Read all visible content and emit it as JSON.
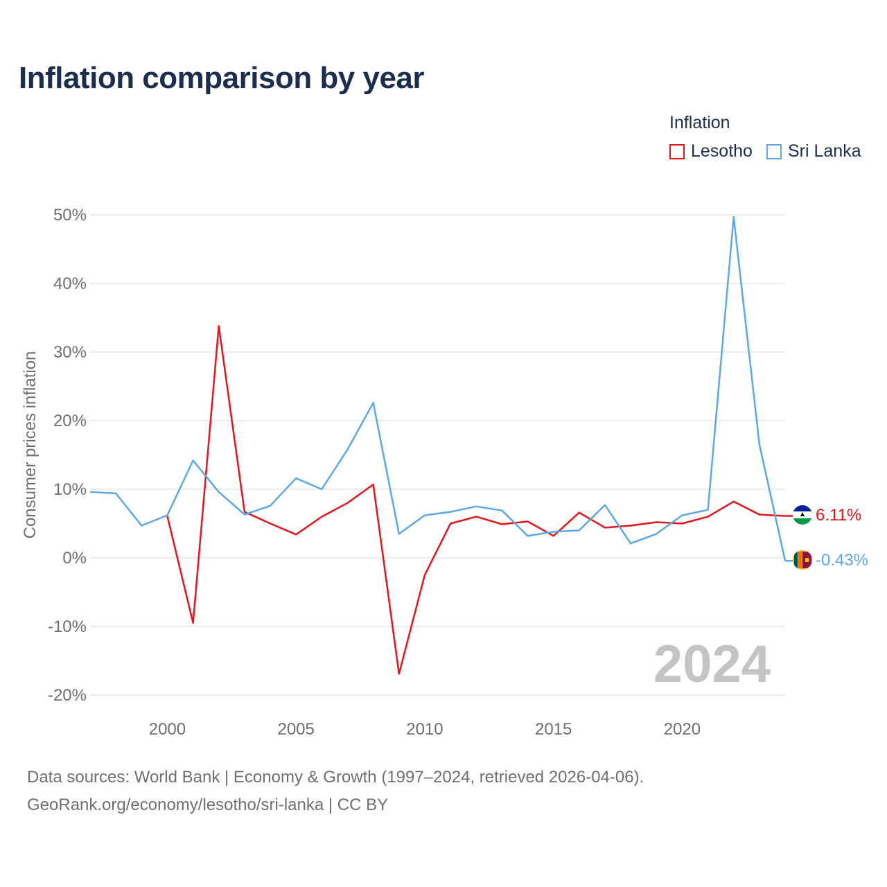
{
  "title": "Inflation comparison by year",
  "legend": {
    "title": "Inflation",
    "items": [
      {
        "label": "Lesotho",
        "color": "#e8141b"
      },
      {
        "label": "Sri Lanka",
        "color": "#5ca8e6"
      }
    ]
  },
  "footer": {
    "line1": "Data sources: World Bank | Economy & Growth (1997–2024, retrieved 2026-04-06).",
    "line2": "GeoRank.org/economy/lesotho/sri-lanka | CC BY"
  },
  "chart_data": {
    "type": "line",
    "ylabel": "Consumer prices inflation",
    "xlabel": "",
    "xlim": [
      1997,
      2024
    ],
    "ylim": [
      -20,
      50
    ],
    "yticks": [
      -20,
      -10,
      0,
      10,
      20,
      30,
      40,
      50
    ],
    "ytick_labels": [
      "-20%",
      "-10%",
      "0%",
      "10%",
      "20%",
      "30%",
      "40%",
      "50%"
    ],
    "xticks": [
      2000,
      2005,
      2010,
      2015,
      2020
    ],
    "xtick_labels": [
      "2000",
      "2005",
      "2010",
      "2015",
      "2020"
    ],
    "watermark_year": "2024",
    "series": [
      {
        "name": "Lesotho",
        "color": "#e8141b",
        "end_label": "6.11%",
        "points": [
          [
            2000,
            6.1
          ],
          [
            2001,
            -9.5
          ],
          [
            2002,
            33.8
          ],
          [
            2003,
            6.7
          ],
          [
            2004,
            5.0
          ],
          [
            2005,
            3.4
          ],
          [
            2006,
            6.0
          ],
          [
            2007,
            8.0
          ],
          [
            2008,
            10.7
          ],
          [
            2009,
            -16.9
          ],
          [
            2010,
            -2.5
          ],
          [
            2011,
            5.0
          ],
          [
            2012,
            6.0
          ],
          [
            2013,
            4.9
          ],
          [
            2014,
            5.3
          ],
          [
            2015,
            3.2
          ],
          [
            2016,
            6.6
          ],
          [
            2017,
            4.4
          ],
          [
            2018,
            4.7
          ],
          [
            2019,
            5.2
          ],
          [
            2020,
            5.0
          ],
          [
            2021,
            6.0
          ],
          [
            2022,
            8.2
          ],
          [
            2023,
            6.3
          ],
          [
            2024,
            6.11
          ]
        ]
      },
      {
        "name": "Sri Lanka",
        "color": "#5ca8e6",
        "end_label": "-0.43%",
        "points": [
          [
            1997,
            9.6
          ],
          [
            1998,
            9.4
          ],
          [
            1999,
            4.7
          ],
          [
            2000,
            6.2
          ],
          [
            2001,
            14.2
          ],
          [
            2002,
            9.6
          ],
          [
            2003,
            6.3
          ],
          [
            2004,
            7.6
          ],
          [
            2005,
            11.6
          ],
          [
            2006,
            10.0
          ],
          [
            2007,
            15.8
          ],
          [
            2008,
            22.6
          ],
          [
            2009,
            3.5
          ],
          [
            2010,
            6.2
          ],
          [
            2011,
            6.7
          ],
          [
            2012,
            7.5
          ],
          [
            2013,
            6.9
          ],
          [
            2014,
            3.2
          ],
          [
            2015,
            3.8
          ],
          [
            2016,
            4.0
          ],
          [
            2017,
            7.7
          ],
          [
            2018,
            2.1
          ],
          [
            2019,
            3.5
          ],
          [
            2020,
            6.2
          ],
          [
            2021,
            7.0
          ],
          [
            2022,
            49.7
          ],
          [
            2023,
            16.5
          ],
          [
            2024,
            -0.43
          ]
        ]
      }
    ]
  }
}
